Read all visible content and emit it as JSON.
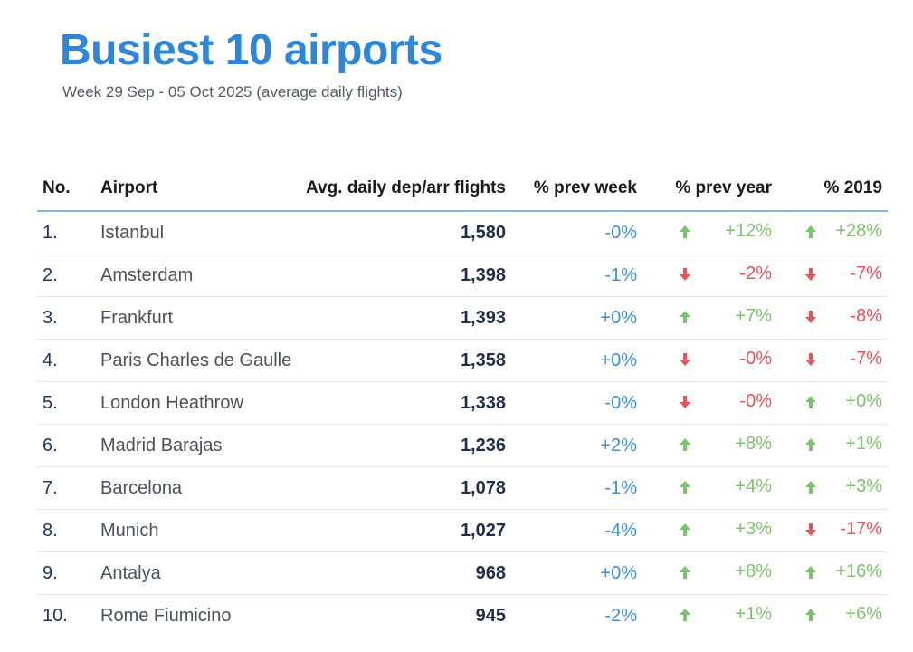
{
  "title": "Busiest 10 airports",
  "subtitle": "Week 29 Sep - 05 Oct 2025 (average daily flights)",
  "colors": {
    "up": "#7cc36e",
    "down": "#e8525a",
    "neutral": "#3f8fd6",
    "title": "#2f86d8"
  },
  "headers": {
    "no": "No.",
    "airport": "Airport",
    "flights": "Avg. daily dep/arr flights",
    "prev_week": "% prev week",
    "prev_year": "% prev year",
    "y2019": "% 2019"
  },
  "rows": [
    {
      "no": "1.",
      "airport": "Istanbul",
      "flights": "1,580",
      "prev_week": "-0%",
      "prev_year": {
        "value": "+12%",
        "dir": "up"
      },
      "y2019": {
        "value": "+28%",
        "dir": "up"
      }
    },
    {
      "no": "2.",
      "airport": "Amsterdam",
      "flights": "1,398",
      "prev_week": "-1%",
      "prev_year": {
        "value": "-2%",
        "dir": "down"
      },
      "y2019": {
        "value": "-7%",
        "dir": "down"
      }
    },
    {
      "no": "3.",
      "airport": "Frankfurt",
      "flights": "1,393",
      "prev_week": "+0%",
      "prev_year": {
        "value": "+7%",
        "dir": "up"
      },
      "y2019": {
        "value": "-8%",
        "dir": "down"
      }
    },
    {
      "no": "4.",
      "airport": "Paris Charles de Gaulle",
      "flights": "1,358",
      "prev_week": "+0%",
      "prev_year": {
        "value": "-0%",
        "dir": "down"
      },
      "y2019": {
        "value": "-7%",
        "dir": "down"
      }
    },
    {
      "no": "5.",
      "airport": "London Heathrow",
      "flights": "1,338",
      "prev_week": "-0%",
      "prev_year": {
        "value": "-0%",
        "dir": "down"
      },
      "y2019": {
        "value": "+0%",
        "dir": "up"
      }
    },
    {
      "no": "6.",
      "airport": "Madrid Barajas",
      "flights": "1,236",
      "prev_week": "+2%",
      "prev_year": {
        "value": "+8%",
        "dir": "up"
      },
      "y2019": {
        "value": "+1%",
        "dir": "up"
      }
    },
    {
      "no": "7.",
      "airport": "Barcelona",
      "flights": "1,078",
      "prev_week": "-1%",
      "prev_year": {
        "value": "+4%",
        "dir": "up"
      },
      "y2019": {
        "value": "+3%",
        "dir": "up"
      }
    },
    {
      "no": "8.",
      "airport": "Munich",
      "flights": "1,027",
      "prev_week": "-4%",
      "prev_year": {
        "value": "+3%",
        "dir": "up"
      },
      "y2019": {
        "value": "-17%",
        "dir": "down"
      }
    },
    {
      "no": "9.",
      "airport": "Antalya",
      "flights": "968",
      "prev_week": "+0%",
      "prev_year": {
        "value": "+8%",
        "dir": "up"
      },
      "y2019": {
        "value": "+16%",
        "dir": "up"
      }
    },
    {
      "no": "10.",
      "airport": "Rome Fiumicino",
      "flights": "945",
      "prev_week": "-2%",
      "prev_year": {
        "value": "+1%",
        "dir": "up"
      },
      "y2019": {
        "value": "+6%",
        "dir": "up"
      }
    }
  ]
}
